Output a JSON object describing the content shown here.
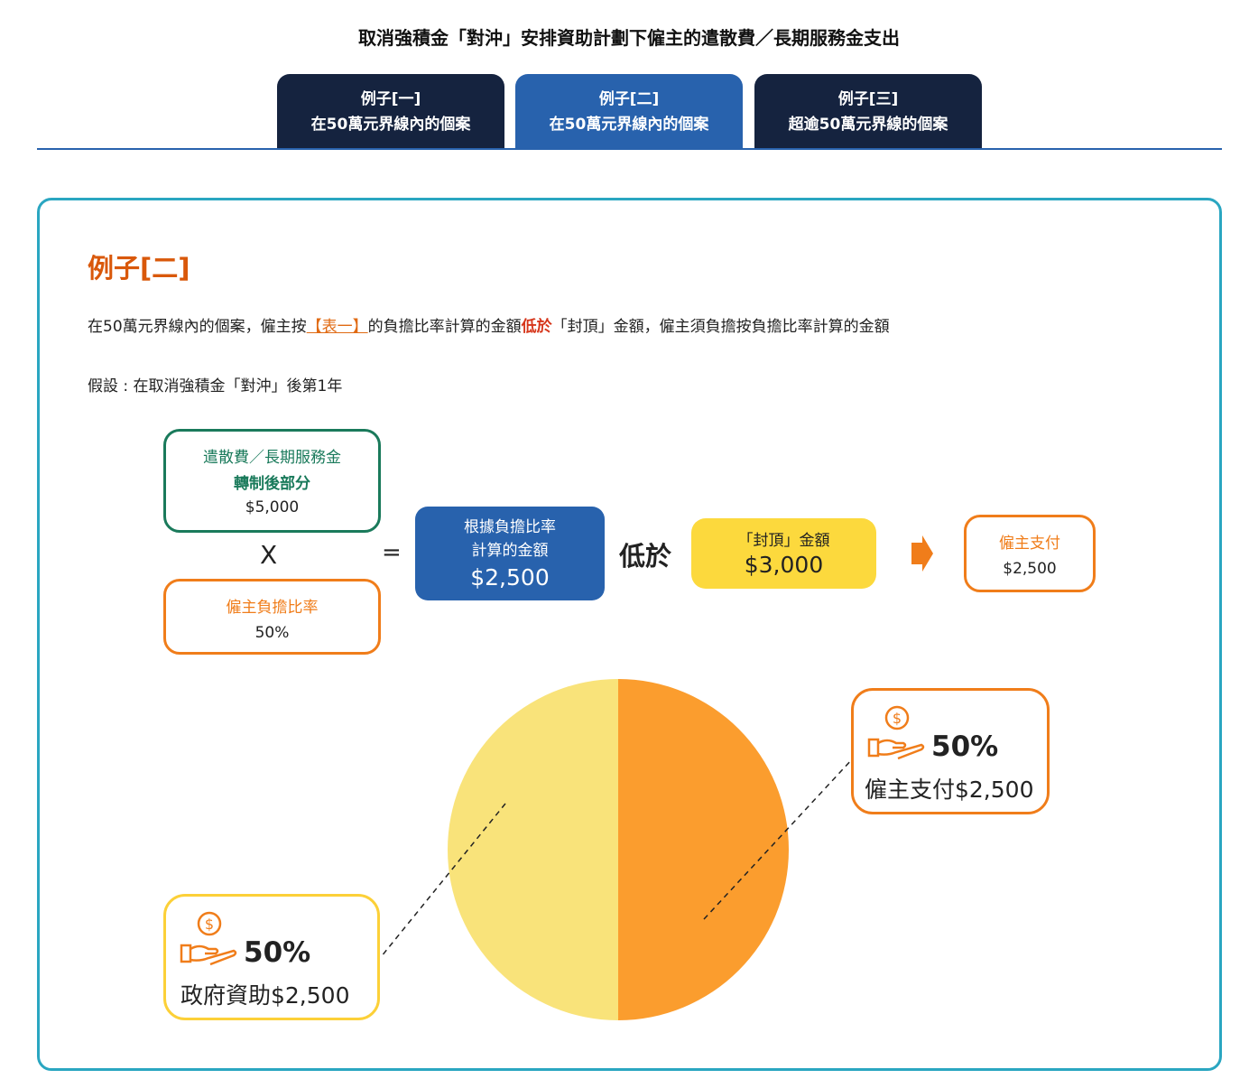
{
  "title": "取消強積金「對沖」安排資助計劃下僱主的遣散費／長期服務金支出",
  "tabs": [
    {
      "line1": "例子[一]",
      "line2": "在50萬元界線內的個案",
      "active": false
    },
    {
      "line1": "例子[二]",
      "line2": "在50萬元界線內的個案",
      "active": true
    },
    {
      "line1": "例子[三]",
      "line2": "超逾50萬元界線的個案",
      "active": false
    }
  ],
  "example": {
    "title": "例子[二]",
    "desc_pre": "在50萬元界線內的個案，僱主按",
    "desc_link": "【表一】",
    "desc_mid": "的負擔比率計算的金額",
    "desc_red": "低於",
    "desc_post": "「封頂」金額，僱主須負擔按負擔比率計算的金額",
    "assumption": "假設 : 在取消強積金「對沖」後第1年"
  },
  "formula": {
    "severance": {
      "line1": "遣散費／長期服務金",
      "line2": "轉制後部分",
      "value": "$5,000"
    },
    "times": "X",
    "rate": {
      "label": "僱主負擔比率",
      "value": "50%"
    },
    "equals": "=",
    "calc": {
      "line1": "根據負擔比率",
      "line2": "計算的金額",
      "value": "$2,500"
    },
    "lower": "低於",
    "cap": {
      "label": "「封頂」金額",
      "value": "$3,000"
    },
    "pay": {
      "label": "僱主支付",
      "value": "$2,500"
    }
  },
  "colors": {
    "navy": "#15233f",
    "blue": "#2862ad",
    "orange": "#f07d1a",
    "yellow": "#fcd93d",
    "green": "#1a7a5b",
    "teal": "#2aa6c1"
  },
  "chart_data": {
    "type": "pie",
    "slices": [
      {
        "name": "僱主支付",
        "value": 50,
        "amount": "$2,500",
        "color": "#fb9d2e"
      },
      {
        "name": "政府資助",
        "value": 50,
        "amount": "$2,500",
        "color": "#f9e37a"
      }
    ]
  },
  "callouts": {
    "employer": {
      "pct": "50%",
      "label": "僱主支付$2,500",
      "icon": "hand-coin-icon"
    },
    "government": {
      "pct": "50%",
      "label": "政府資助$2,500",
      "icon": "hand-coin-icon"
    }
  }
}
